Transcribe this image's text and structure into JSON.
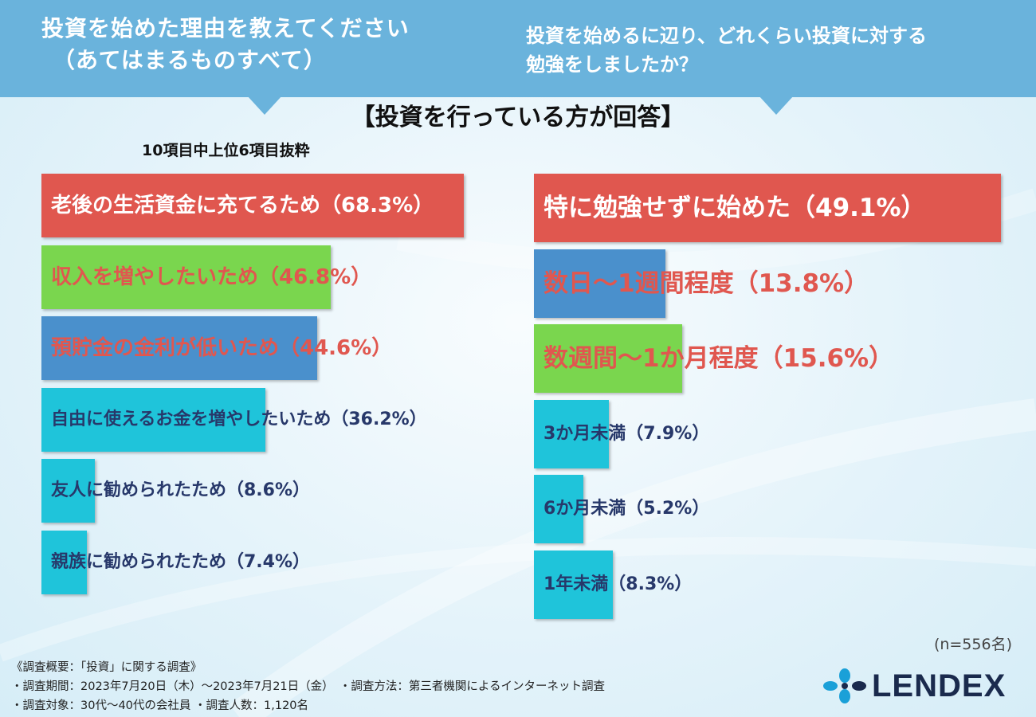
{
  "header": {
    "left_question_line1": "投資を始めた理由を教えてください",
    "left_question_line2": "（あてはまるものすべて）",
    "right_question_line1": "投資を始めるに辺り、どれくらい投資に対する",
    "right_question_line2": "勉強をしましたか？"
  },
  "center_title": "【投資を行っている方が回答】",
  "left_subnote": "10項目中上位6項目抜粋",
  "sample_size": "(n=556名)",
  "footer": {
    "line1": "《調査概要：「投資」に関する調査》",
    "line2": "・調査期間：2023年7月20日（木）～2023年7月21日（金）　・調査方法：第三者機関によるインターネット調査",
    "line3": "・調査対象：30代～40代の会社員 ・調査人数：1,120名"
  },
  "logo": {
    "text": "LENDEX"
  },
  "colors": {
    "banner": "#6ab3dc",
    "red": "#e0574f",
    "green": "#7ad64e",
    "blue": "#4a90cc",
    "cyan": "#1fc4da",
    "navy": "#27386a",
    "logo_blue": "#1aa0d8"
  },
  "chart_data": [
    {
      "type": "bar",
      "orientation": "horizontal",
      "title": "投資を始めた理由を教えてください（あてはまるものすべて）",
      "categories": [
        "老後の生活資金に充てるため",
        "収入を増やしたいため",
        "預貯金の金利が低いため",
        "自由に使えるお金を増やしたいため",
        "友人に勧められたため",
        "親族に勧められたため"
      ],
      "values": [
        68.3,
        46.8,
        44.6,
        36.2,
        8.6,
        7.4
      ],
      "labels": [
        "老後の生活資金に充てるため（68.3%）",
        "収入を増やしたいため（46.8%）",
        "預貯金の金利が低いため（44.6%）",
        "自由に使えるお金を増やしたいため（36.2%）",
        "友人に勧められたため（8.6%）",
        "親族に勧められたため（7.4%）"
      ],
      "bar_colors": [
        "#e0574f",
        "#7ad64e",
        "#4a90cc",
        "#1fc4da",
        "#1fc4da",
        "#1fc4da"
      ],
      "label_colors": [
        "#ffffff",
        "#e0574f",
        "#e0574f",
        "#27386a",
        "#27386a",
        "#27386a"
      ],
      "xlim": [
        0,
        68.3
      ],
      "unit": "%"
    },
    {
      "type": "bar",
      "orientation": "horizontal",
      "title": "投資を始めるに辺り、どれくらい投資に対する勉強をしましたか？",
      "categories": [
        "特に勉強せずに始めた",
        "数日～1週間程度",
        "数週間～1か月程度",
        "3か月未満",
        "6か月未満",
        "1年未満"
      ],
      "values": [
        49.1,
        13.8,
        15.6,
        7.9,
        5.2,
        8.3
      ],
      "labels": [
        "特に勉強せずに始めた（49.1%）",
        "数日～1週間程度（13.8%）",
        "数週間～1か月程度（15.6%）",
        "3か月未満（7.9%）",
        "6か月未満（5.2%）",
        "1年未満（8.3%）"
      ],
      "bar_colors": [
        "#e0574f",
        "#4a90cc",
        "#7ad64e",
        "#1fc4da",
        "#1fc4da",
        "#1fc4da"
      ],
      "label_colors": [
        "#ffffff",
        "#e0574f",
        "#e0574f",
        "#27386a",
        "#27386a",
        "#27386a"
      ],
      "xlim": [
        0,
        49.1
      ],
      "unit": "%"
    }
  ]
}
